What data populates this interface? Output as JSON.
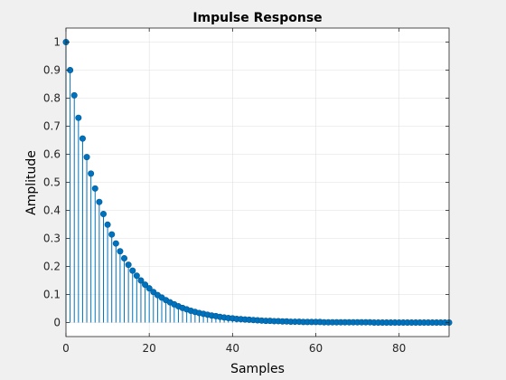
{
  "chart_data": {
    "type": "stem",
    "title": "Impulse Response",
    "xlabel": "Samples",
    "ylabel": "Amplitude",
    "xlim": [
      0,
      92
    ],
    "ylim": [
      -0.05,
      1.05
    ],
    "xticks": [
      0,
      20,
      40,
      60,
      80
    ],
    "yticks": [
      0,
      0.1,
      0.2,
      0.3,
      0.4,
      0.5,
      0.6,
      0.7,
      0.8,
      0.9,
      1
    ],
    "grid": true,
    "series_color": "#0072bd",
    "x": [
      0,
      1,
      2,
      3,
      4,
      5,
      6,
      7,
      8,
      9,
      10,
      11,
      12,
      13,
      14,
      15,
      16,
      17,
      18,
      19,
      20,
      21,
      22,
      23,
      24,
      25,
      26,
      27,
      28,
      29,
      30,
      31,
      32,
      33,
      34,
      35,
      36,
      37,
      38,
      39,
      40,
      41,
      42,
      43,
      44,
      45,
      46,
      47,
      48,
      49,
      50,
      51,
      52,
      53,
      54,
      55,
      56,
      57,
      58,
      59,
      60,
      61,
      62,
      63,
      64,
      65,
      66,
      67,
      68,
      69,
      70,
      71,
      72,
      73,
      74,
      75,
      76,
      77,
      78,
      79,
      80,
      81,
      82,
      83,
      84,
      85,
      86,
      87,
      88,
      89,
      90,
      91,
      92
    ],
    "y": [
      1,
      0.9,
      0.81,
      0.73,
      0.656,
      0.59,
      0.531,
      0.478,
      0.43,
      0.387,
      0.349,
      0.314,
      0.282,
      0.254,
      0.229,
      0.206,
      0.185,
      0.167,
      0.15,
      0.135,
      0.122,
      0.109,
      0.098,
      0.089,
      0.08,
      0.072,
      0.065,
      0.058,
      0.052,
      0.047,
      0.042,
      0.038,
      0.034,
      0.031,
      0.028,
      0.025,
      0.023,
      0.02,
      0.018,
      0.016,
      0.015,
      0.013,
      0.012,
      0.011,
      0.01,
      0.009,
      0.008,
      0.007,
      0.006,
      0.006,
      0.005,
      0.005,
      0.004,
      0.004,
      0.003,
      0.003,
      0.003,
      0.002,
      0.002,
      0.002,
      0.002,
      0.002,
      0.001,
      0.001,
      0.001,
      0.001,
      0.001,
      0.001,
      0.001,
      0.001,
      0.001,
      0.001,
      0.001,
      0.001,
      0,
      0,
      0,
      0,
      0,
      0,
      0,
      0,
      0,
      0,
      0,
      0,
      0,
      0,
      0,
      0,
      0,
      0,
      0
    ]
  }
}
